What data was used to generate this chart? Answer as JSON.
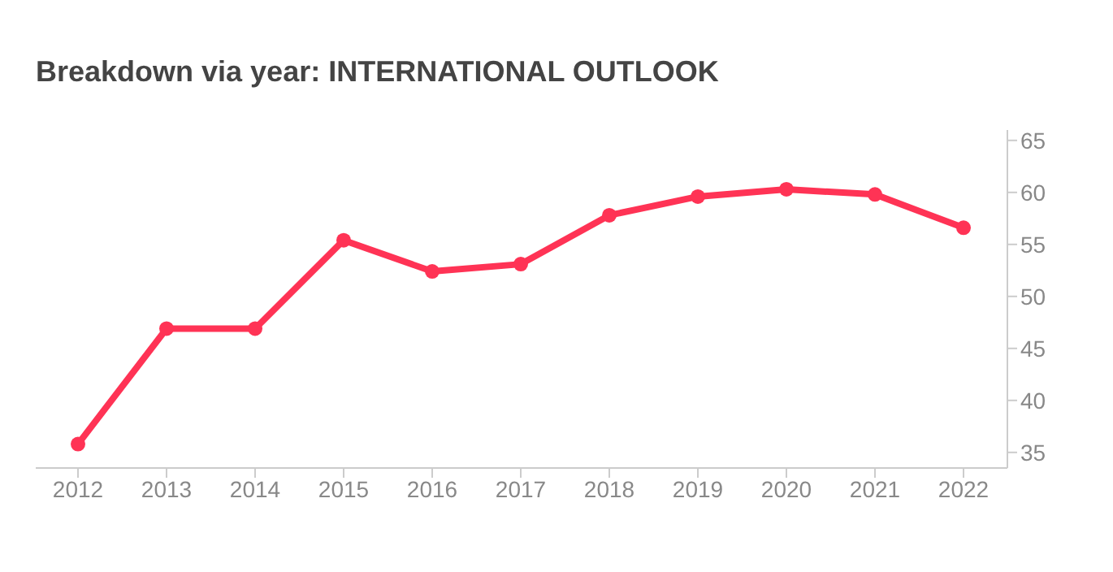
{
  "chart_data": {
    "type": "line",
    "title": "Breakdown via year: INTERNATIONAL OUTLOOK",
    "categories": [
      "2012",
      "2013",
      "2014",
      "2015",
      "2016",
      "2017",
      "2018",
      "2019",
      "2020",
      "2021",
      "2022"
    ],
    "series": [
      {
        "color": "#ff3355",
        "values": [
          35.8,
          46.9,
          46.9,
          55.4,
          52.4,
          53.1,
          57.8,
          59.6,
          60.3,
          59.8,
          56.6
        ]
      }
    ],
    "ylim": [
      33.5,
      66
    ],
    "yticks": [
      35,
      40,
      45,
      50,
      55,
      60,
      65
    ],
    "grid": false,
    "legend": false,
    "marker": "circle",
    "line_style": "solid"
  }
}
